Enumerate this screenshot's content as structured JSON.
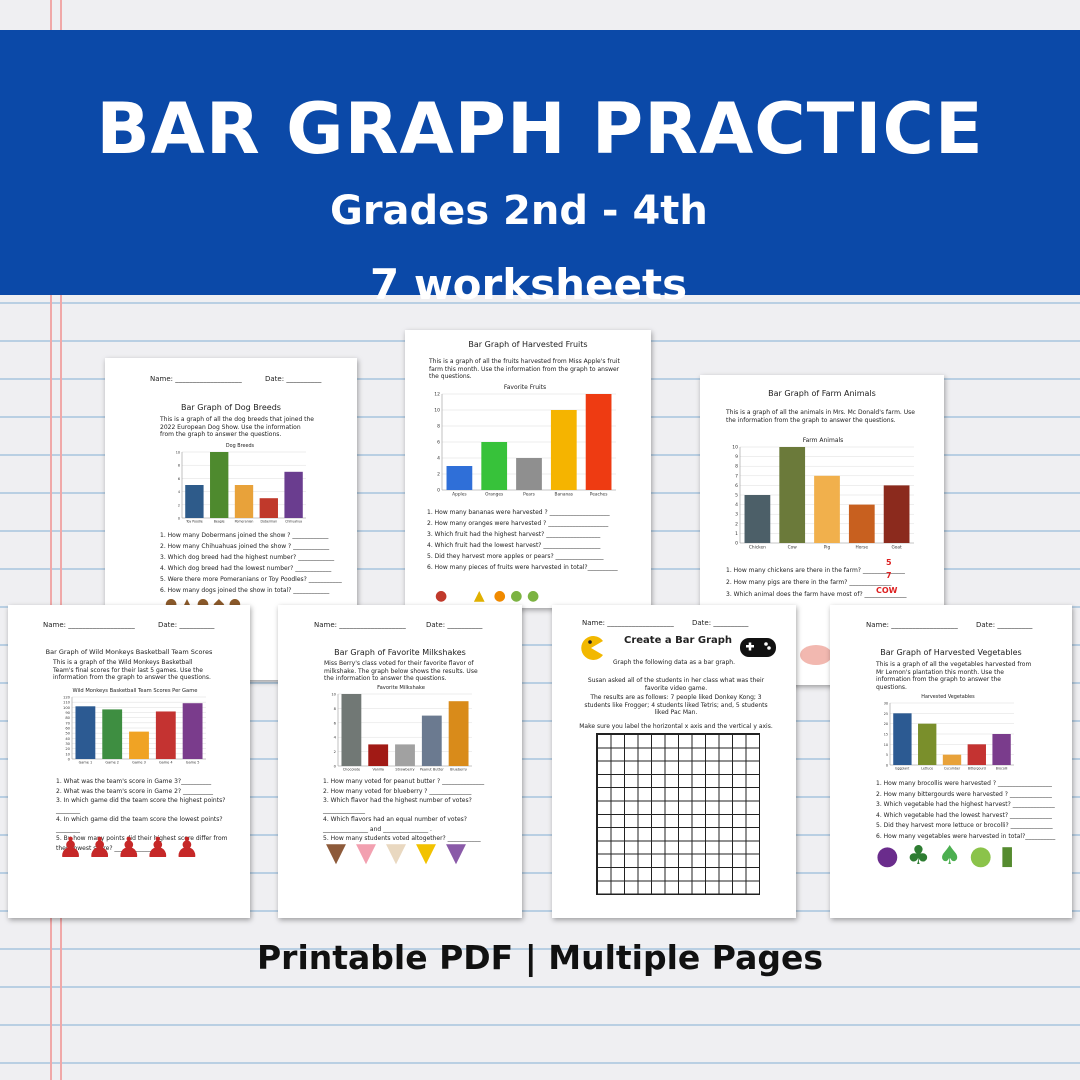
{
  "banner": {
    "title": "BAR GRAPH PRACTICE",
    "grades": "Grades 2nd - 4th",
    "count": "7 worksheets"
  },
  "footer": "Printable PDF  |  Multiple Pages",
  "colors": {
    "banner": "#0b49a8",
    "ruled_line": "#b9cfe3",
    "margin_line": "#f0a8a8"
  },
  "sheets": {
    "dog": {
      "name_label": "Name: ___________________",
      "date_label": "Date: __________",
      "title": "Bar Graph of Dog Breeds",
      "intro": "This is a graph of all the dog  breeds that joined the 2022 European Dog Show.  Use  the information from the graph to answer the questions.",
      "q1": "1. How many Dobermans joined the show ?  ____________",
      "q2": "2. How many Chihuahuas joined the show ? ____________",
      "q3": "3. Which dog breed had the highest number? ____________",
      "q4": "4. Which dog breed had the lowest number? ____________",
      "q5": "5. Were there more Pomeranians or Toy Poodles?  ___________",
      "q6": "6. How many dogs joined the show in total? ____________"
    },
    "fruits": {
      "title": "Bar Graph of Harvested Fruits",
      "intro": "This is a graph of all the fruits harvested from Miss Apple's fruit farm this month. Use the information from the graph to answer the questions.",
      "q1": "1. How many bananas were harvested ? ____________________",
      "q2": "2. How many oranges were harvested ? ____________________",
      "q3": "3. Which fruit had the highest harvest? __________________",
      "q4": "4. Which fruit had the lowest harvest? ___________________",
      "q5": "5. Did they harvest more apples or pears? ________________",
      "q6": "6. How many pieces of fruits were harvested in total?__________"
    },
    "farm": {
      "title": "Bar Graph of Farm Animals",
      "intro": "This is a graph of all the animals in Mrs. Mc Donald's farm. Use the information from the graph to answer the questions.",
      "q1": "1. How many chickens are there in the farm? ______________",
      "q2": "2. How many pigs are there in the farm? ______________",
      "q3": "3. Which animal does the farm have most of? ______________",
      "a1": "5",
      "a2": "7",
      "a3": "COW"
    },
    "monkeys": {
      "name_label": "Name: ___________________",
      "date_label": "Date: __________",
      "title": "Bar Graph of Wild Monkeys Basketball Team Scores",
      "intro": "This is a graph of the Wild Monkeys Basketball Team's final scores for their last 5 games.  Use the information from the graph to answer the questions.",
      "q1": "1. What was the team's score in Game 3?__________",
      "q2": "2. What was the team's score in Game 2? __________",
      "q3": "3. In which game did the team score the highest points?________",
      "q4": "4. In which game did the team score the lowest points?________",
      "q5": "5. By how many points did their highest score differ from their lowest score?  _____________"
    },
    "milkshakes": {
      "name_label": "Name: ___________________",
      "date_label": "Date: __________",
      "title": "Bar Graph of Favorite Milkshakes",
      "intro": "Miss Berry's class voted for their favorite flavor of milkshake. The graph below shows the results.  Use the information to answer the questions.",
      "q1": "1. How many voted for peanut butter ? ______________",
      "q2": "2. How many  voted for blueberry  ? ______________",
      "q3": "3. Which flavor had the highest number of votes?______________",
      "q4": "4. Which flavors had an equal number of votes?",
      "q4b": "_______________ and _______________ .",
      "q5": "5. How many students voted altogether?  ___________"
    },
    "create": {
      "name_label": "Name: ___________________",
      "date_label": "Date: __________",
      "title": "Create a Bar Graph",
      "subtitle": "Graph the following data as a bar graph.",
      "intro1": "Susan asked all of the students in her class what was their favorite video game.",
      "intro2": "The results are as follows: 7 people liked Donkey Kong; 3 students like Frogger; 4 students liked Tetris; and, 5 students liked Pac Man.",
      "intro3": "Make sure you label the horizontal x axis and the vertical y axis."
    },
    "veg": {
      "name_label": "Name: ___________________",
      "date_label": "Date: __________",
      "title": "Bar Graph of Harvested Vegetables",
      "intro": "This is a graph of all the vegetables harvested from Mr Lemon's plantation this month. Use the information from the graph to answer the questions.",
      "q1": "1. How many brocollis were harvested ? __________________",
      "q2": "2. How many  bittergourds were harvested ? ______________",
      "q3": "3. Which vegetable had the highest harvest? ______________",
      "q4": "4. Which vegetable had the lowest harvest? ______________",
      "q5": "5. Did they harvest more lettuce or brocolli? ______________",
      "q6": "6. How many vegetables were harvested in total?__________"
    }
  },
  "chart_data": [
    {
      "type": "bar",
      "title": "Dog Breeds",
      "categories": [
        "Toy Poodle",
        "Beagle",
        "Pomeranian",
        "Doberman",
        "Chihuahua"
      ],
      "values": [
        5,
        10,
        5,
        3,
        7
      ],
      "colors": [
        "#2e5b8a",
        "#4e8a2e",
        "#e8a23a",
        "#c0392b",
        "#6a3d8f"
      ],
      "ylim": [
        0,
        10
      ],
      "yticks": [
        "0",
        "2",
        "4",
        "6",
        "8",
        "10"
      ]
    },
    {
      "type": "bar",
      "title": "Favorite Fruits",
      "categories": [
        "Apples",
        "Oranges",
        "Pears",
        "Bananas",
        "Peaches"
      ],
      "values": [
        3,
        6,
        4,
        10,
        12
      ],
      "colors": [
        "#2f6fd8",
        "#37c23a",
        "#8f8f8f",
        "#f5b400",
        "#ee3b12"
      ],
      "ylim": [
        0,
        12
      ],
      "yticks": [
        "0",
        "2",
        "4",
        "6",
        "8",
        "10",
        "12"
      ]
    },
    {
      "type": "bar",
      "title": "Farm Animals",
      "categories": [
        "Chicken",
        "Cow",
        "Pig",
        "Horse",
        "Goat"
      ],
      "values": [
        5,
        10,
        7,
        4,
        6
      ],
      "colors": [
        "#4c5f68",
        "#6b7a3a",
        "#f1b04c",
        "#c8601f",
        "#8b2a1d"
      ],
      "ylim": [
        0,
        10
      ],
      "yticks": [
        "0",
        "1",
        "2",
        "3",
        "4",
        "5",
        "6",
        "7",
        "8",
        "9",
        "10"
      ]
    },
    {
      "type": "bar",
      "title": "Wild Monkeys Basketball Team Scores Per Game",
      "categories": [
        "Game 1",
        "Game 2",
        "Game 3",
        "Game 4",
        "Game 5"
      ],
      "values": [
        102,
        96,
        53,
        92,
        108
      ],
      "colors": [
        "#2c5a92",
        "#3e8e41",
        "#f0a324",
        "#c43331",
        "#7a3c8c"
      ],
      "ylim": [
        0,
        120
      ],
      "yticks": [
        "0",
        "10",
        "20",
        "30",
        "40",
        "50",
        "60",
        "70",
        "80",
        "90",
        "100",
        "110",
        "120"
      ]
    },
    {
      "type": "bar",
      "title": "Favorite Milkshake",
      "categories": [
        "Chocolate",
        "Vanilla",
        "Strawberry",
        "Peanut Butter",
        "Blueberry"
      ],
      "values": [
        10,
        3,
        3,
        7,
        9
      ],
      "colors": [
        "#717875",
        "#a11a15",
        "#a1a1a1",
        "#6b7a90",
        "#d98b1a"
      ],
      "ylim": [
        0,
        10
      ],
      "yticks": [
        "0",
        "2",
        "4",
        "6",
        "8",
        "10"
      ]
    },
    {
      "type": "bar",
      "title": "Harvested Vegetables",
      "categories": [
        "Eggplant",
        "Lettuce",
        "Cucumber",
        "Bittergourd",
        "Brocolli"
      ],
      "values": [
        25,
        20,
        5,
        10,
        15
      ],
      "colors": [
        "#2c5a92",
        "#7a8f2b",
        "#e8a23a",
        "#c43331",
        "#7a3c8c"
      ],
      "ylim": [
        0,
        30
      ],
      "yticks": [
        "0",
        "5",
        "10",
        "15",
        "20",
        "25",
        "30"
      ]
    }
  ]
}
